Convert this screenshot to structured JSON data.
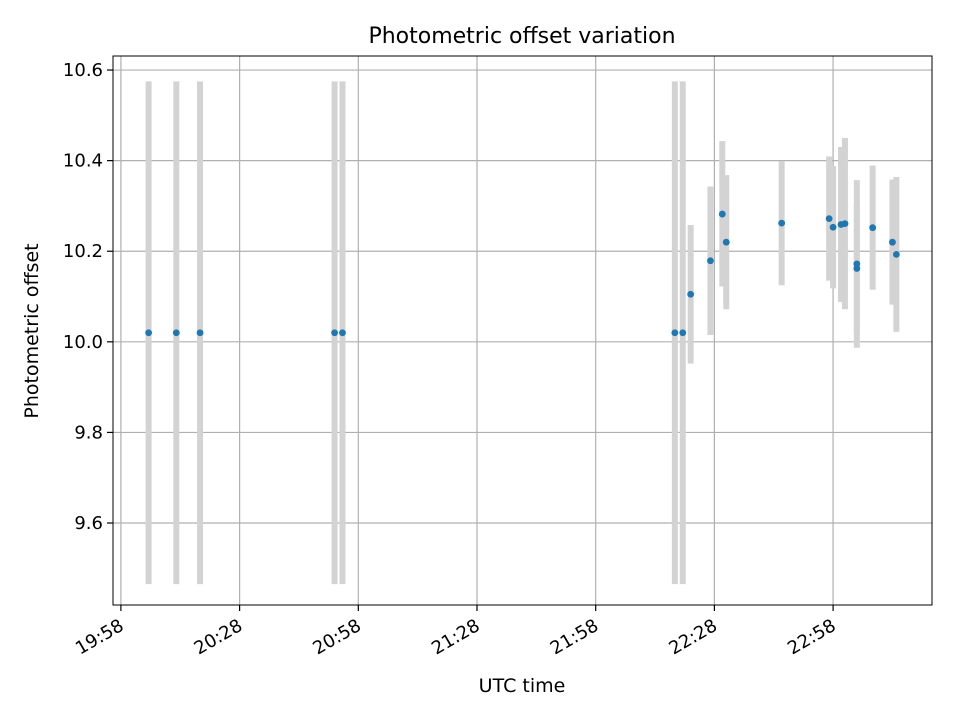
{
  "chart_data": {
    "type": "scatter",
    "title": "Photometric offset variation",
    "xlabel": "UTC time",
    "ylabel": "Photometric offset",
    "x_ticks": [
      "19:58",
      "20:28",
      "20:58",
      "21:28",
      "21:58",
      "22:28",
      "22:58"
    ],
    "y_ticks": [
      "9.6",
      "9.8",
      "10.0",
      "10.2",
      "10.4",
      "10.6"
    ],
    "x_axis": {
      "kind": "time",
      "start": "19:56",
      "end": "23:23"
    },
    "ylim": [
      9.419,
      10.631
    ],
    "grid": true,
    "error_bar_color": "#d3d3d3",
    "marker_color": "#1f77b4",
    "series": [
      {
        "points": [
          {
            "x": "20:05",
            "y": 10.02,
            "ylo": 9.465,
            "yhi": 10.575
          },
          {
            "x": "20:12",
            "y": 10.02,
            "ylo": 9.465,
            "yhi": 10.575
          },
          {
            "x": "20:18",
            "y": 10.02,
            "ylo": 9.465,
            "yhi": 10.575
          },
          {
            "x": "20:52",
            "y": 10.02,
            "ylo": 9.465,
            "yhi": 10.575
          },
          {
            "x": "20:54",
            "y": 10.02,
            "ylo": 9.465,
            "yhi": 10.575
          },
          {
            "x": "22:18",
            "y": 10.02,
            "ylo": 9.465,
            "yhi": 10.575
          },
          {
            "x": "22:20",
            "y": 10.02,
            "ylo": 9.465,
            "yhi": 10.575
          },
          {
            "x": "22:22",
            "y": 10.105,
            "ylo": 9.952,
            "yhi": 10.258
          },
          {
            "x": "22:27",
            "y": 10.179,
            "ylo": 10.015,
            "yhi": 10.343
          },
          {
            "x": "22:30",
            "y": 10.282,
            "ylo": 10.122,
            "yhi": 10.443
          },
          {
            "x": "22:31",
            "y": 10.22,
            "ylo": 10.072,
            "yhi": 10.368
          },
          {
            "x": "22:45",
            "y": 10.262,
            "ylo": 10.125,
            "yhi": 10.399
          },
          {
            "x": "22:57",
            "y": 10.272,
            "ylo": 10.135,
            "yhi": 10.409
          },
          {
            "x": "22:58",
            "y": 10.253,
            "ylo": 10.118,
            "yhi": 10.388
          },
          {
            "x": "23:00",
            "y": 10.259,
            "ylo": 10.088,
            "yhi": 10.43
          },
          {
            "x": "23:01",
            "y": 10.261,
            "ylo": 10.072,
            "yhi": 10.45
          },
          {
            "x": "23:04",
            "y": 10.172,
            "ylo": 9.987,
            "yhi": 10.357
          },
          {
            "x": "23:04",
            "y": 10.162,
            "ylo": 10.022,
            "yhi": 10.302
          },
          {
            "x": "23:08",
            "y": 10.252,
            "ylo": 10.115,
            "yhi": 10.389
          },
          {
            "x": "23:13",
            "y": 10.22,
            "ylo": 10.082,
            "yhi": 10.358
          },
          {
            "x": "23:14",
            "y": 10.193,
            "ylo": 10.022,
            "yhi": 10.364
          }
        ]
      }
    ]
  }
}
